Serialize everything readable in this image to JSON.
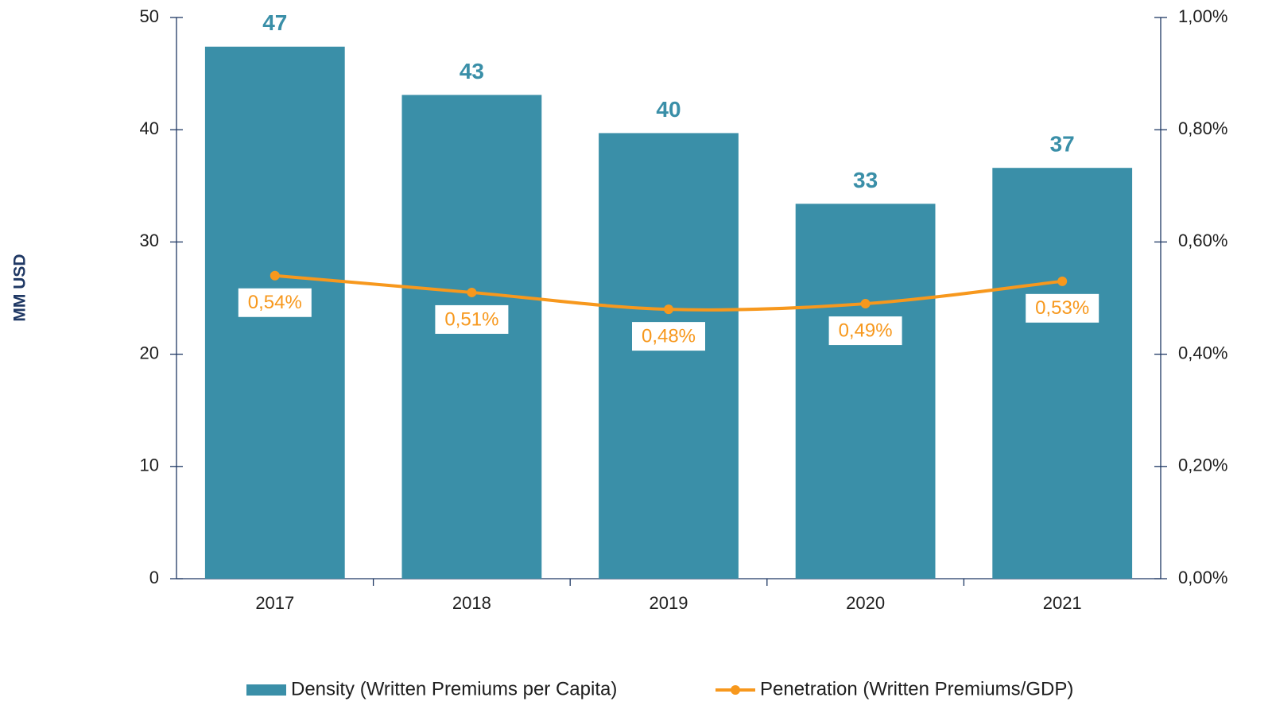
{
  "chart_data": {
    "type": "bar",
    "y_label": "MM USD",
    "categories": [
      "2017",
      "2018",
      "2019",
      "2020",
      "2021"
    ],
    "series": [
      {
        "name": "Density (Written Premiums per Capita)",
        "type": "bar",
        "color": "#3a8fa8",
        "values": [
          47.4,
          43.1,
          39.7,
          33.4,
          36.6
        ],
        "value_labels": [
          "47",
          "43",
          "40",
          "33",
          "37"
        ]
      },
      {
        "name": "Penetration (Written Premiums/GDP)",
        "type": "line",
        "axis": "y2",
        "color": "#f7981d",
        "values": [
          0.54,
          0.51,
          0.48,
          0.49,
          0.53
        ],
        "value_labels": [
          "0,54%",
          "0,51%",
          "0,48%",
          "0,49%",
          "0,53%"
        ]
      }
    ],
    "ylim": [
      0,
      50
    ],
    "yticks": [
      0,
      10,
      20,
      30,
      40,
      50
    ],
    "y2lim": [
      0,
      1
    ],
    "y2ticks": [
      {
        "value": 0,
        "label": "0,00%"
      },
      {
        "value": 0.2,
        "label": "0,20%"
      },
      {
        "value": 0.4,
        "label": "0,40%"
      },
      {
        "value": 0.6,
        "label": "0,60%"
      },
      {
        "value": 0.8,
        "label": "0,80%"
      },
      {
        "value": 1,
        "label": "1,00%"
      }
    ],
    "legend": "bottom",
    "grid": false
  }
}
